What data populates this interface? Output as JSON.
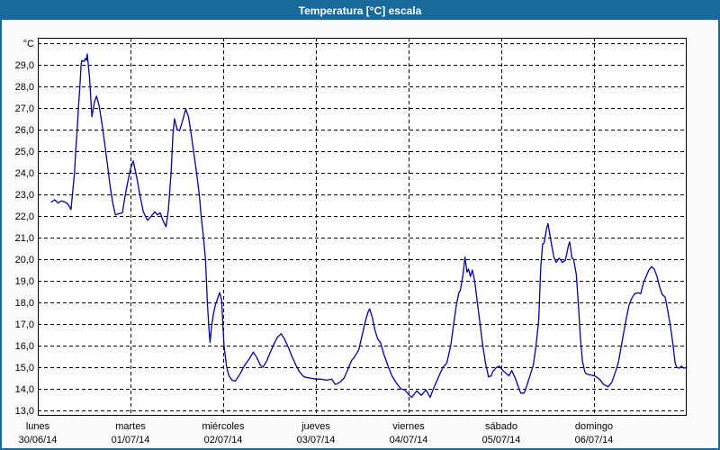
{
  "window": {
    "title": "Temperatura [°C] escala"
  },
  "colors": {
    "titlebar_background": "#19699b",
    "frame_border": "#19699b",
    "panel_background": "#fcfdfa",
    "plot_background": "#ffffff",
    "grid_color": "#000000",
    "axis_text_color": "#000000",
    "series_line_color": "#0000a8"
  },
  "chart_data": {
    "type": "line",
    "title": "Temperatura [°C] escala",
    "grid": "dashed",
    "legend_position": "none",
    "y_axis": {
      "unit_label": "°C",
      "min": 13,
      "max": 30,
      "step": 1,
      "decimal_style": "comma",
      "tick_labels": [
        "13,0",
        "14,0",
        "15,0",
        "16,0",
        "17,0",
        "18,0",
        "19,0",
        "20,0",
        "21,0",
        "22,0",
        "23,0",
        "24,0",
        "25,0",
        "26,0",
        "27,0",
        "28,0",
        "29,0"
      ]
    },
    "x_axis": {
      "range_hours": [
        0,
        168
      ],
      "gridline_hours": [
        24,
        48,
        72,
        96,
        120,
        144
      ],
      "day_start_hours": [
        0,
        24,
        48,
        72,
        96,
        120,
        144
      ],
      "days": [
        {
          "label": "lunes",
          "date": "30/06/14"
        },
        {
          "label": "martes",
          "date": "01/07/14"
        },
        {
          "label": "miércoles",
          "date": "02/07/14"
        },
        {
          "label": "jueves",
          "date": "03/07/14"
        },
        {
          "label": "viernes",
          "date": "04/07/14"
        },
        {
          "label": "sábado",
          "date": "05/07/14"
        },
        {
          "label": "domingo",
          "date": "06/07/14"
        }
      ]
    },
    "series": [
      {
        "name": "Temperatura",
        "color": "#0000a8",
        "points": [
          [
            3.5,
            22.65
          ],
          [
            4.4,
            22.75
          ],
          [
            5.2,
            22.6
          ],
          [
            6.1,
            22.7
          ],
          [
            7.0,
            22.65
          ],
          [
            7.8,
            22.55
          ],
          [
            8.6,
            22.3
          ],
          [
            9.5,
            24.0
          ],
          [
            9.8,
            25.0
          ],
          [
            10.2,
            26.0
          ],
          [
            10.5,
            27.0
          ],
          [
            10.9,
            28.0
          ],
          [
            11.2,
            29.0
          ],
          [
            11.4,
            29.2
          ],
          [
            11.9,
            29.15
          ],
          [
            12.4,
            29.3
          ],
          [
            12.6,
            29.2
          ],
          [
            12.8,
            29.5
          ],
          [
            13.4,
            28.4
          ],
          [
            14.0,
            26.6
          ],
          [
            14.7,
            27.3
          ],
          [
            15.2,
            27.55
          ],
          [
            15.9,
            27.1
          ],
          [
            16.6,
            26.3
          ],
          [
            17.3,
            25.4
          ],
          [
            18.0,
            24.4
          ],
          [
            18.7,
            23.4
          ],
          [
            19.4,
            22.6
          ],
          [
            20.1,
            22.05
          ],
          [
            20.8,
            22.1
          ],
          [
            21.9,
            22.15
          ],
          [
            22.4,
            22.7
          ],
          [
            23.1,
            23.4
          ],
          [
            23.9,
            24.1
          ],
          [
            24.3,
            24.35
          ],
          [
            24.7,
            24.55
          ],
          [
            25.6,
            23.8
          ],
          [
            26.4,
            23.0
          ],
          [
            27.3,
            22.2
          ],
          [
            28.4,
            21.8
          ],
          [
            29.4,
            22.0
          ],
          [
            30.3,
            22.2
          ],
          [
            31.0,
            22.05
          ],
          [
            31.7,
            22.15
          ],
          [
            32.4,
            21.8
          ],
          [
            33.2,
            21.5
          ],
          [
            33.8,
            22.3
          ],
          [
            34.5,
            24.0
          ],
          [
            35.0,
            25.8
          ],
          [
            35.4,
            26.5
          ],
          [
            36.1,
            26.0
          ],
          [
            36.7,
            25.95
          ],
          [
            37.3,
            26.3
          ],
          [
            38.3,
            26.95
          ],
          [
            39.0,
            26.6
          ],
          [
            39.7,
            25.8
          ],
          [
            40.4,
            24.9
          ],
          [
            41.1,
            24.0
          ],
          [
            41.8,
            23.0
          ],
          [
            42.3,
            22.0
          ],
          [
            42.9,
            21.0
          ],
          [
            43.4,
            20.0
          ],
          [
            43.9,
            18.0
          ],
          [
            44.3,
            16.8
          ],
          [
            44.6,
            16.15
          ],
          [
            45.0,
            16.9
          ],
          [
            45.5,
            17.5
          ],
          [
            46.0,
            17.9
          ],
          [
            46.6,
            18.2
          ],
          [
            47.1,
            18.45
          ],
          [
            47.6,
            18.1
          ],
          [
            47.9,
            17.0
          ],
          [
            48.2,
            16.0
          ],
          [
            48.9,
            15.0
          ],
          [
            49.5,
            14.6
          ],
          [
            50.3,
            14.4
          ],
          [
            51.1,
            14.35
          ],
          [
            52.4,
            14.7
          ],
          [
            53.6,
            15.1
          ],
          [
            54.8,
            15.4
          ],
          [
            55.8,
            15.7
          ],
          [
            56.7,
            15.45
          ],
          [
            57.6,
            15.1
          ],
          [
            58.3,
            15.0
          ],
          [
            59.3,
            15.3
          ],
          [
            60.2,
            15.7
          ],
          [
            61.2,
            16.1
          ],
          [
            62.1,
            16.4
          ],
          [
            63.0,
            16.55
          ],
          [
            63.9,
            16.3
          ],
          [
            64.9,
            15.9
          ],
          [
            65.8,
            15.5
          ],
          [
            66.8,
            15.1
          ],
          [
            67.7,
            14.8
          ],
          [
            68.9,
            14.55
          ],
          [
            70.4,
            14.5
          ],
          [
            71.9,
            14.45
          ],
          [
            73.3,
            14.45
          ],
          [
            74.7,
            14.4
          ],
          [
            76.1,
            14.45
          ],
          [
            77.0,
            14.2
          ],
          [
            78.2,
            14.3
          ],
          [
            79.3,
            14.5
          ],
          [
            80.3,
            14.9
          ],
          [
            81.2,
            15.3
          ],
          [
            81.9,
            15.45
          ],
          [
            83.1,
            15.8
          ],
          [
            84.0,
            16.5
          ],
          [
            84.9,
            17.2
          ],
          [
            85.5,
            17.55
          ],
          [
            85.9,
            17.7
          ],
          [
            86.6,
            17.3
          ],
          [
            87.3,
            16.7
          ],
          [
            88.0,
            16.3
          ],
          [
            88.7,
            16.15
          ],
          [
            89.6,
            15.6
          ],
          [
            90.8,
            15.0
          ],
          [
            91.7,
            14.6
          ],
          [
            92.9,
            14.25
          ],
          [
            94.0,
            14.0
          ],
          [
            95.0,
            13.95
          ],
          [
            95.7,
            13.8
          ],
          [
            96.8,
            13.6
          ],
          [
            98.1,
            13.9
          ],
          [
            99.3,
            13.7
          ],
          [
            100.5,
            13.95
          ],
          [
            101.6,
            13.6
          ],
          [
            102.4,
            14.0
          ],
          [
            103.4,
            14.4
          ],
          [
            104.1,
            14.7
          ],
          [
            104.9,
            15.0
          ],
          [
            105.9,
            15.2
          ],
          [
            106.9,
            16.0
          ],
          [
            107.6,
            16.9
          ],
          [
            108.3,
            17.8
          ],
          [
            109.0,
            18.45
          ],
          [
            109.4,
            18.55
          ],
          [
            110.1,
            19.3
          ],
          [
            110.6,
            20.1
          ],
          [
            111.1,
            19.4
          ],
          [
            111.5,
            19.55
          ],
          [
            112.0,
            19.2
          ],
          [
            112.5,
            19.5
          ],
          [
            113.1,
            19.0
          ],
          [
            113.8,
            18.0
          ],
          [
            114.5,
            17.0
          ],
          [
            115.2,
            16.0
          ],
          [
            115.9,
            15.2
          ],
          [
            116.7,
            14.55
          ],
          [
            117.4,
            14.6
          ],
          [
            117.8,
            14.8
          ],
          [
            118.8,
            15.0
          ],
          [
            119.5,
            15.05
          ],
          [
            120.4,
            14.85
          ],
          [
            121.3,
            14.7
          ],
          [
            122.0,
            14.6
          ],
          [
            122.7,
            14.85
          ],
          [
            123.6,
            14.5
          ],
          [
            124.3,
            14.15
          ],
          [
            125.0,
            13.8
          ],
          [
            125.9,
            13.8
          ],
          [
            126.7,
            14.2
          ],
          [
            127.6,
            14.7
          ],
          [
            128.3,
            15.1
          ],
          [
            129.0,
            16.0
          ],
          [
            129.7,
            17.2
          ],
          [
            130.2,
            19.6
          ],
          [
            130.7,
            20.7
          ],
          [
            131.1,
            20.75
          ],
          [
            131.7,
            21.4
          ],
          [
            132.1,
            21.65
          ],
          [
            132.8,
            20.9
          ],
          [
            133.6,
            20.1
          ],
          [
            134.2,
            19.85
          ],
          [
            135.0,
            20.05
          ],
          [
            135.8,
            19.85
          ],
          [
            136.6,
            19.95
          ],
          [
            137.4,
            20.65
          ],
          [
            137.7,
            20.8
          ],
          [
            138.3,
            20.05
          ],
          [
            138.7,
            20.0
          ],
          [
            139.4,
            19.3
          ],
          [
            140.0,
            17.8
          ],
          [
            140.5,
            16.3
          ],
          [
            141.0,
            15.3
          ],
          [
            141.6,
            14.8
          ],
          [
            141.9,
            14.7
          ],
          [
            142.8,
            14.65
          ],
          [
            144.2,
            14.6
          ],
          [
            145.4,
            14.45
          ],
          [
            146.5,
            14.2
          ],
          [
            147.7,
            14.1
          ],
          [
            148.6,
            14.3
          ],
          [
            149.6,
            14.8
          ],
          [
            150.3,
            15.2
          ],
          [
            151.0,
            15.9
          ],
          [
            151.7,
            16.6
          ],
          [
            152.4,
            17.3
          ],
          [
            153.1,
            17.9
          ],
          [
            153.8,
            18.2
          ],
          [
            154.5,
            18.4
          ],
          [
            155.4,
            18.45
          ],
          [
            156.1,
            18.4
          ],
          [
            156.8,
            18.9
          ],
          [
            157.5,
            19.2
          ],
          [
            158.2,
            19.5
          ],
          [
            158.9,
            19.65
          ],
          [
            159.6,
            19.55
          ],
          [
            160.3,
            19.2
          ],
          [
            161.0,
            18.7
          ],
          [
            161.7,
            18.35
          ],
          [
            162.4,
            18.25
          ],
          [
            162.9,
            17.8
          ],
          [
            163.8,
            16.9
          ],
          [
            164.4,
            16.1
          ],
          [
            165.0,
            15.2
          ],
          [
            165.4,
            15.0
          ],
          [
            166.0,
            14.95
          ],
          [
            166.6,
            15.05
          ],
          [
            167.3,
            14.95
          ],
          [
            168.0,
            15.0
          ]
        ]
      }
    ]
  }
}
